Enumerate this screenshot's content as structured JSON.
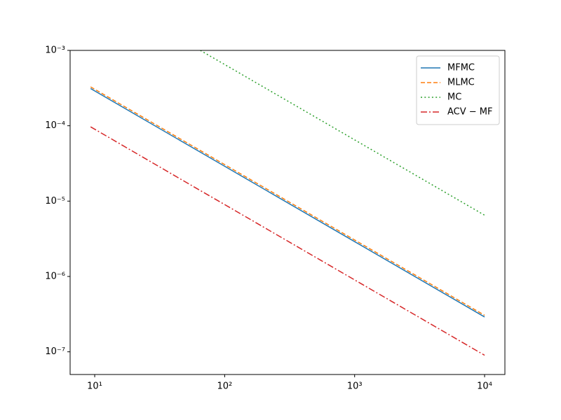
{
  "chart_data": {
    "type": "line",
    "x": [
      9.3,
      65,
      100,
      1000,
      10000
    ],
    "series": [
      {
        "name": "MFMC",
        "color": "#1f77b4",
        "linestyle": "solid",
        "values": [
          0.000312,
          4.46e-05,
          2.9e-05,
          2.9e-06,
          2.9e-07
        ]
      },
      {
        "name": "MLMC",
        "color": "#ff7f0e",
        "linestyle": "dashed",
        "values": [
          0.000328,
          4.69e-05,
          3.05e-05,
          3.05e-06,
          3.05e-07
        ]
      },
      {
        "name": "MC",
        "color": "#2ca02c",
        "linestyle": "dotted",
        "values": [
          null,
          0.001,
          0.00065,
          6.5e-05,
          6.5e-06
        ]
      },
      {
        "name": "ACV − MF",
        "color": "#d62728",
        "linestyle": "dashdot",
        "values": [
          9.68e-05,
          1.38e-05,
          9e-06,
          9e-07,
          9e-08
        ]
      }
    ],
    "xscale": "log",
    "yscale": "log",
    "xlim": [
      6.47,
      14330
    ],
    "ylim": [
      5e-08,
      0.001
    ],
    "xticks": [
      {
        "value": 10,
        "label": "10¹"
      },
      {
        "value": 100,
        "label": "10²"
      },
      {
        "value": 1000,
        "label": "10³"
      },
      {
        "value": 10000,
        "label": "10⁴"
      }
    ],
    "yticks": [
      {
        "value": 1e-07,
        "label": "10⁻⁷"
      },
      {
        "value": 1e-06,
        "label": "10⁻⁶"
      },
      {
        "value": 1e-05,
        "label": "10⁻⁵"
      },
      {
        "value": 0.0001,
        "label": "10⁻⁴"
      },
      {
        "value": 0.001,
        "label": "10⁻³"
      }
    ],
    "grid": false,
    "legend": "upper right"
  }
}
